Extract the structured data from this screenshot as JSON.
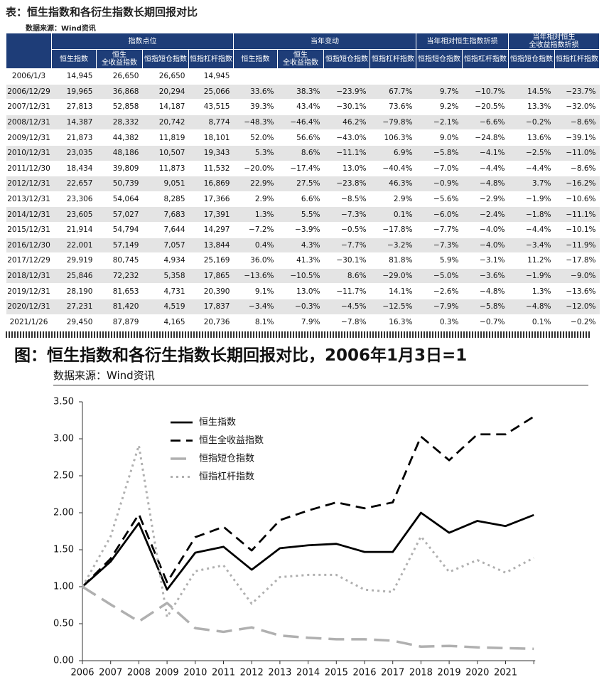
{
  "table": {
    "title": "表：恒生指数和各衍生指数长期回报对比",
    "source": "数据来源：Wind资讯",
    "group_headers": [
      "指数点位",
      "当年变动",
      "当年相对恒生指数折损",
      "当年相对恒生\n全收益指数折损"
    ],
    "headers": [
      "恒生指数",
      "恒生\n全收益指数",
      "恒指短仓指数",
      "恒指杠杆指数",
      "恒生指数",
      "恒生\n全收益指数",
      "恒指短仓指数",
      "恒指杠杆指数",
      "恒指短仓指数",
      "恒指杠杆指数",
      "恒指短仓指数",
      "恒指杠杆指数"
    ],
    "rows": [
      [
        "2006/1/3",
        "14,945",
        "26,650",
        "26,650",
        "14,945"
      ],
      [
        "2006/12/29",
        "19,965",
        "36,868",
        "20,294",
        "25,066",
        "33.6%",
        "38.3%",
        "−23.9%",
        "67.7%",
        "9.7%",
        "−10.7%",
        "14.5%",
        "−23.7%"
      ],
      [
        "2007/12/31",
        "27,813",
        "52,858",
        "14,187",
        "43,515",
        "39.3%",
        "43.4%",
        "−30.1%",
        "73.6%",
        "9.2%",
        "−20.5%",
        "13.3%",
        "−32.0%"
      ],
      [
        "2008/12/31",
        "14,387",
        "28,332",
        "20,742",
        "8,774",
        "−48.3%",
        "−46.4%",
        "46.2%",
        "−79.8%",
        "−2.1%",
        "−6.6%",
        "−0.2%",
        "−8.6%"
      ],
      [
        "2009/12/31",
        "21,873",
        "44,382",
        "11,819",
        "18,101",
        "52.0%",
        "56.6%",
        "−43.0%",
        "106.3%",
        "9.0%",
        "−24.8%",
        "13.6%",
        "−39.1%"
      ],
      [
        "2010/12/31",
        "23,035",
        "48,186",
        "10,507",
        "19,343",
        "5.3%",
        "8.6%",
        "−11.1%",
        "6.9%",
        "−5.8%",
        "−4.1%",
        "−2.5%",
        "−11.0%"
      ],
      [
        "2011/12/30",
        "18,434",
        "39,809",
        "11,873",
        "11,532",
        "−20.0%",
        "−17.4%",
        "13.0%",
        "−40.4%",
        "−7.0%",
        "−4.4%",
        "−4.4%",
        "−8.6%"
      ],
      [
        "2012/12/31",
        "22,657",
        "50,739",
        "9,051",
        "16,869",
        "22.9%",
        "27.5%",
        "−23.8%",
        "46.3%",
        "−0.9%",
        "−4.8%",
        "3.7%",
        "−16.2%"
      ],
      [
        "2013/12/31",
        "23,306",
        "54,064",
        "8,285",
        "17,366",
        "2.9%",
        "6.6%",
        "−8.5%",
        "2.9%",
        "−5.6%",
        "−2.9%",
        "−1.9%",
        "−10.6%"
      ],
      [
        "2014/12/31",
        "23,605",
        "57,027",
        "7,683",
        "17,391",
        "1.3%",
        "5.5%",
        "−7.3%",
        "0.1%",
        "−6.0%",
        "−2.4%",
        "−1.8%",
        "−11.1%"
      ],
      [
        "2015/12/31",
        "21,914",
        "54,794",
        "7,644",
        "14,297",
        "−7.2%",
        "−3.9%",
        "−0.5%",
        "−17.8%",
        "−7.7%",
        "−4.0%",
        "−4.4%",
        "−10.1%"
      ],
      [
        "2016/12/30",
        "22,001",
        "57,149",
        "7,057",
        "13,844",
        "0.4%",
        "4.3%",
        "−7.7%",
        "−3.2%",
        "−7.3%",
        "−4.0%",
        "−3.4%",
        "−11.9%"
      ],
      [
        "2017/12/29",
        "29,919",
        "80,745",
        "4,934",
        "25,169",
        "36.0%",
        "41.3%",
        "−30.1%",
        "81.8%",
        "5.9%",
        "−3.1%",
        "11.2%",
        "−17.8%"
      ],
      [
        "2018/12/31",
        "25,846",
        "72,232",
        "5,358",
        "17,865",
        "−13.6%",
        "−10.5%",
        "8.6%",
        "−29.0%",
        "−5.0%",
        "−3.6%",
        "−1.9%",
        "−9.0%"
      ],
      [
        "2019/12/31",
        "28,190",
        "81,653",
        "4,731",
        "20,390",
        "9.1%",
        "13.0%",
        "−11.7%",
        "14.1%",
        "−2.6%",
        "−4.8%",
        "1.3%",
        "−13.6%"
      ],
      [
        "2020/12/31",
        "27,231",
        "81,420",
        "4,519",
        "17,837",
        "−3.4%",
        "−0.3%",
        "−4.5%",
        "−12.5%",
        "−7.9%",
        "−5.8%",
        "−4.8%",
        "−12.0%"
      ],
      [
        "2021/1/26",
        "29,450",
        "87,879",
        "4,165",
        "20,736",
        "8.1%",
        "7.9%",
        "−7.8%",
        "16.3%",
        "0.3%",
        "−0.7%",
        "0.1%",
        "−0.2%"
      ]
    ]
  },
  "chart_data": {
    "type": "line",
    "title": "图：恒生指数和各衍生指数长期回报对比，2006年1月3日=1",
    "source": "数据来源：Wind资讯",
    "categories": [
      "2006",
      "2007",
      "2008",
      "2009",
      "2010",
      "2011",
      "2012",
      "2013",
      "2014",
      "2015",
      "2016",
      "2017",
      "2018",
      "2019",
      "2020",
      "2021",
      null
    ],
    "ylim": [
      0,
      3.5
    ],
    "yticks": [
      {
        "value": 0,
        "label": "0.00"
      },
      {
        "value": 0.5,
        "label": "0.50"
      },
      {
        "value": 1,
        "label": "1.00"
      },
      {
        "value": 1.5,
        "label": "1.50"
      },
      {
        "value": 2,
        "label": "2.00"
      },
      {
        "value": 2.5,
        "label": "2.50"
      },
      {
        "value": 3,
        "label": "3.00"
      },
      {
        "value": 3.5,
        "label": "3.50"
      }
    ],
    "grid": false,
    "legend": "top-left",
    "series": [
      {
        "name": "恒生指数",
        "color": "#000000",
        "dash": "solid",
        "values": [
          1.0,
          1.34,
          1.86,
          0.96,
          1.46,
          1.54,
          1.23,
          1.52,
          1.56,
          1.58,
          1.47,
          1.47,
          2.0,
          1.73,
          1.89,
          1.82,
          1.97
        ]
      },
      {
        "name": "恒生全收益指数",
        "color": "#000000",
        "dash": "dashed",
        "values": [
          1.0,
          1.38,
          1.98,
          1.06,
          1.67,
          1.81,
          1.49,
          1.9,
          2.03,
          2.14,
          2.06,
          2.14,
          3.03,
          2.71,
          3.06,
          3.06,
          3.3
        ]
      },
      {
        "name": "恒指短仓指数",
        "color": "#b0b0b0",
        "dash": "longdash",
        "values": [
          1.0,
          0.76,
          0.53,
          0.78,
          0.44,
          0.39,
          0.45,
          0.34,
          0.31,
          0.29,
          0.29,
          0.27,
          0.19,
          0.2,
          0.18,
          0.17,
          0.16
        ]
      },
      {
        "name": "恒指杠杆指数",
        "color": "#b0b0b0",
        "dash": "dotted",
        "values": [
          1.0,
          1.68,
          2.91,
          0.59,
          1.21,
          1.29,
          0.77,
          1.13,
          1.16,
          1.16,
          0.96,
          0.93,
          1.68,
          1.2,
          1.36,
          1.19,
          1.39
        ]
      }
    ]
  }
}
